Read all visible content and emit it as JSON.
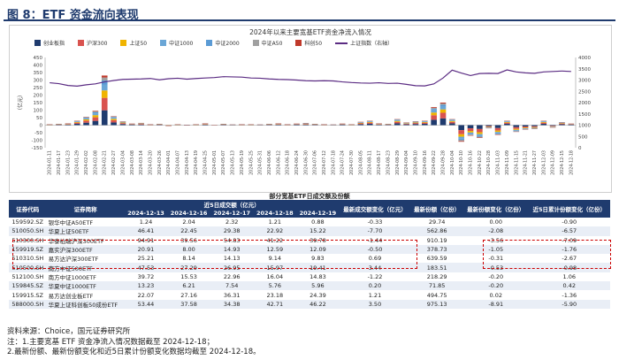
{
  "figure_title": "图 8：ETF 资金流向表现",
  "chart_data": {
    "type": "bar",
    "title": "2024年以来主要宽基ETF资金净流入情况",
    "ylabel_left": "（亿元）",
    "ylim_left": [
      -150,
      450
    ],
    "yticks_left": [
      "-150",
      "-100",
      "-50",
      "0",
      "50",
      "100",
      "150",
      "200",
      "250",
      "300",
      "350",
      "400",
      "450"
    ],
    "ylim_right": [
      0,
      4000
    ],
    "yticks_right": [
      "0",
      "500",
      "1000",
      "1500",
      "2000",
      "2500",
      "3000",
      "3500",
      "4000"
    ],
    "series": [
      {
        "name": "创业板指",
        "color": "#1f3b6e"
      },
      {
        "name": "沪深300",
        "color": "#d9534f"
      },
      {
        "name": "上证50",
        "color": "#f0b400"
      },
      {
        "name": "中证1000",
        "color": "#6aa6d6"
      },
      {
        "name": "中证2000",
        "color": "#5b9bd5"
      },
      {
        "name": "中证A50",
        "color": "#a0a0a0"
      },
      {
        "name": "科创50",
        "color": "#c0392b"
      },
      {
        "name": "上证指数（右轴）",
        "color": "#5b2c83"
      }
    ],
    "categories": [
      "2024-01-11",
      "2024-01-17",
      "2024-01-23",
      "2024-01-29",
      "2024-02-02",
      "2024-02-08",
      "2024-02-21",
      "2024-02-27",
      "2024-03-04",
      "2024-03-08",
      "2024-03-14",
      "2024-03-20",
      "2024-03-26",
      "2024-04-01",
      "2024-04-07",
      "2024-04-13",
      "2024-04-19",
      "2024-04-25",
      "2024-05-01",
      "2024-05-07",
      "2024-05-13",
      "2024-05-19",
      "2024-05-25",
      "2024-05-31",
      "2024-06-06",
      "2024-06-12",
      "2024-06-18",
      "2024-06-24",
      "2024-06-30",
      "2024-07-06",
      "2024-07-12",
      "2024-07-18",
      "2024-07-24",
      "2024-07-30",
      "2024-08-05",
      "2024-08-11",
      "2024-08-17",
      "2024-08-23",
      "2024-08-29",
      "2024-09-04",
      "2024-09-10",
      "2024-09-16",
      "2024-09-22",
      "2024-09-28",
      "2024-10-04",
      "2024-10-10",
      "2024-10-16",
      "2024-10-22",
      "2024-10-28",
      "2024-11-03",
      "2024-11-09",
      "2024-11-15",
      "2024-11-21",
      "2024-11-27",
      "2024-12-03",
      "2024-12-09",
      "2024-12-15",
      "2024-12-18"
    ],
    "total_flow": [
      5,
      8,
      12,
      30,
      55,
      95,
      330,
      60,
      25,
      10,
      15,
      6,
      8,
      -4,
      5,
      3,
      5,
      12,
      0,
      8,
      4,
      6,
      5,
      4,
      8,
      12,
      6,
      10,
      14,
      8,
      6,
      4,
      10,
      5,
      22,
      30,
      12,
      8,
      40,
      18,
      26,
      30,
      120,
      150,
      40,
      -110,
      -70,
      -85,
      -20,
      -65,
      30,
      -45,
      -30,
      -25,
      30,
      -15,
      20,
      10
    ],
    "index_right": [
      2880,
      2840,
      2760,
      2730,
      2790,
      2830,
      2920,
      2980,
      3030,
      3040,
      3050,
      3070,
      3010,
      3060,
      3080,
      3040,
      3070,
      3090,
      3110,
      3150,
      3140,
      3130,
      3090,
      3080,
      3050,
      3030,
      3020,
      3000,
      2970,
      2960,
      2970,
      2960,
      2920,
      2890,
      2870,
      2860,
      2880,
      2850,
      2860,
      2810,
      2750,
      2740,
      2830,
      3090,
      3440,
      3310,
      3200,
      3290,
      3300,
      3290,
      3450,
      3360,
      3320,
      3300,
      3360,
      3380,
      3400,
      3380
    ]
  },
  "table": {
    "title": "部分宽基ETF日成交额及份额",
    "headers_top": [
      "证券代码",
      "证券简称",
      "近5日成交额（亿元）",
      "最新成交额变化（亿元）",
      "最新份额（亿份）",
      "最新份额变化（亿份）",
      "近5日累计份额变化（亿份）"
    ],
    "dates": [
      "2024-12-13",
      "2024-12-16",
      "2024-12-17",
      "2024-12-18",
      "2024-12-19"
    ],
    "rows": [
      [
        "159592.SZ",
        "银华中证A50ETF",
        "1.24",
        "2.04",
        "2.32",
        "1.21",
        "0.88",
        "-0.33",
        "29.74",
        "0.00",
        "-0.90"
      ],
      [
        "510050.SH",
        "华夏上证50ETF",
        "46.41",
        "22.45",
        "29.38",
        "22.92",
        "15.22",
        "-7.70",
        "562.86",
        "-2.08",
        "-6.57"
      ],
      [
        "510300.SH",
        "华泰柏瑞沪深300ETF",
        "94.91",
        "39.56",
        "54.83",
        "41.22",
        "39.78",
        "-1.44",
        "910.19",
        "-3.56",
        "-7.09"
      ],
      [
        "159919.SZ",
        "嘉实沪深300ETF",
        "20.91",
        "8.00",
        "14.93",
        "12.59",
        "12.09",
        "-0.50",
        "378.73",
        "-1.05",
        "-1.76"
      ],
      [
        "510310.SH",
        "易方达沪深300ETF",
        "25.21",
        "8.14",
        "14.13",
        "9.14",
        "9.83",
        "0.69",
        "639.59",
        "-0.31",
        "-2.67"
      ],
      [
        "510500.SH",
        "南方中证500ETF",
        "47.53",
        "27.29",
        "26.95",
        "15.97",
        "19.41",
        "3.44",
        "183.51",
        "-0.53",
        "-0.98"
      ],
      [
        "512100.SH",
        "南方中证1000ETF",
        "39.72",
        "15.53",
        "22.96",
        "16.04",
        "14.83",
        "-1.22",
        "218.29",
        "-0.20",
        "1.06"
      ],
      [
        "159845.SZ",
        "华夏中证1000ETF",
        "13.23",
        "6.21",
        "7.54",
        "5.76",
        "5.96",
        "0.20",
        "71.85",
        "-0.20",
        "0.42"
      ],
      [
        "159915.SZ",
        "易方达创业板ETF",
        "22.07",
        "27.16",
        "36.31",
        "23.18",
        "24.39",
        "1.21",
        "494.75",
        "0.02",
        "-1.36"
      ],
      [
        "588000.SH",
        "华夏上证科创板50成份ETF",
        "53.44",
        "37.58",
        "34.38",
        "42.71",
        "46.22",
        "3.50",
        "975.13",
        "-8.91",
        "-5.90"
      ]
    ]
  },
  "notes": [
    "资料来源：Choice，国元证券研究所",
    "注：1.主要宽基 ETF 资金净流入情况数据截至 2024-12-18；",
    "2.最新份额、最新份额变化和近5日累计份额变化数据均截至 2024-12-18。"
  ]
}
